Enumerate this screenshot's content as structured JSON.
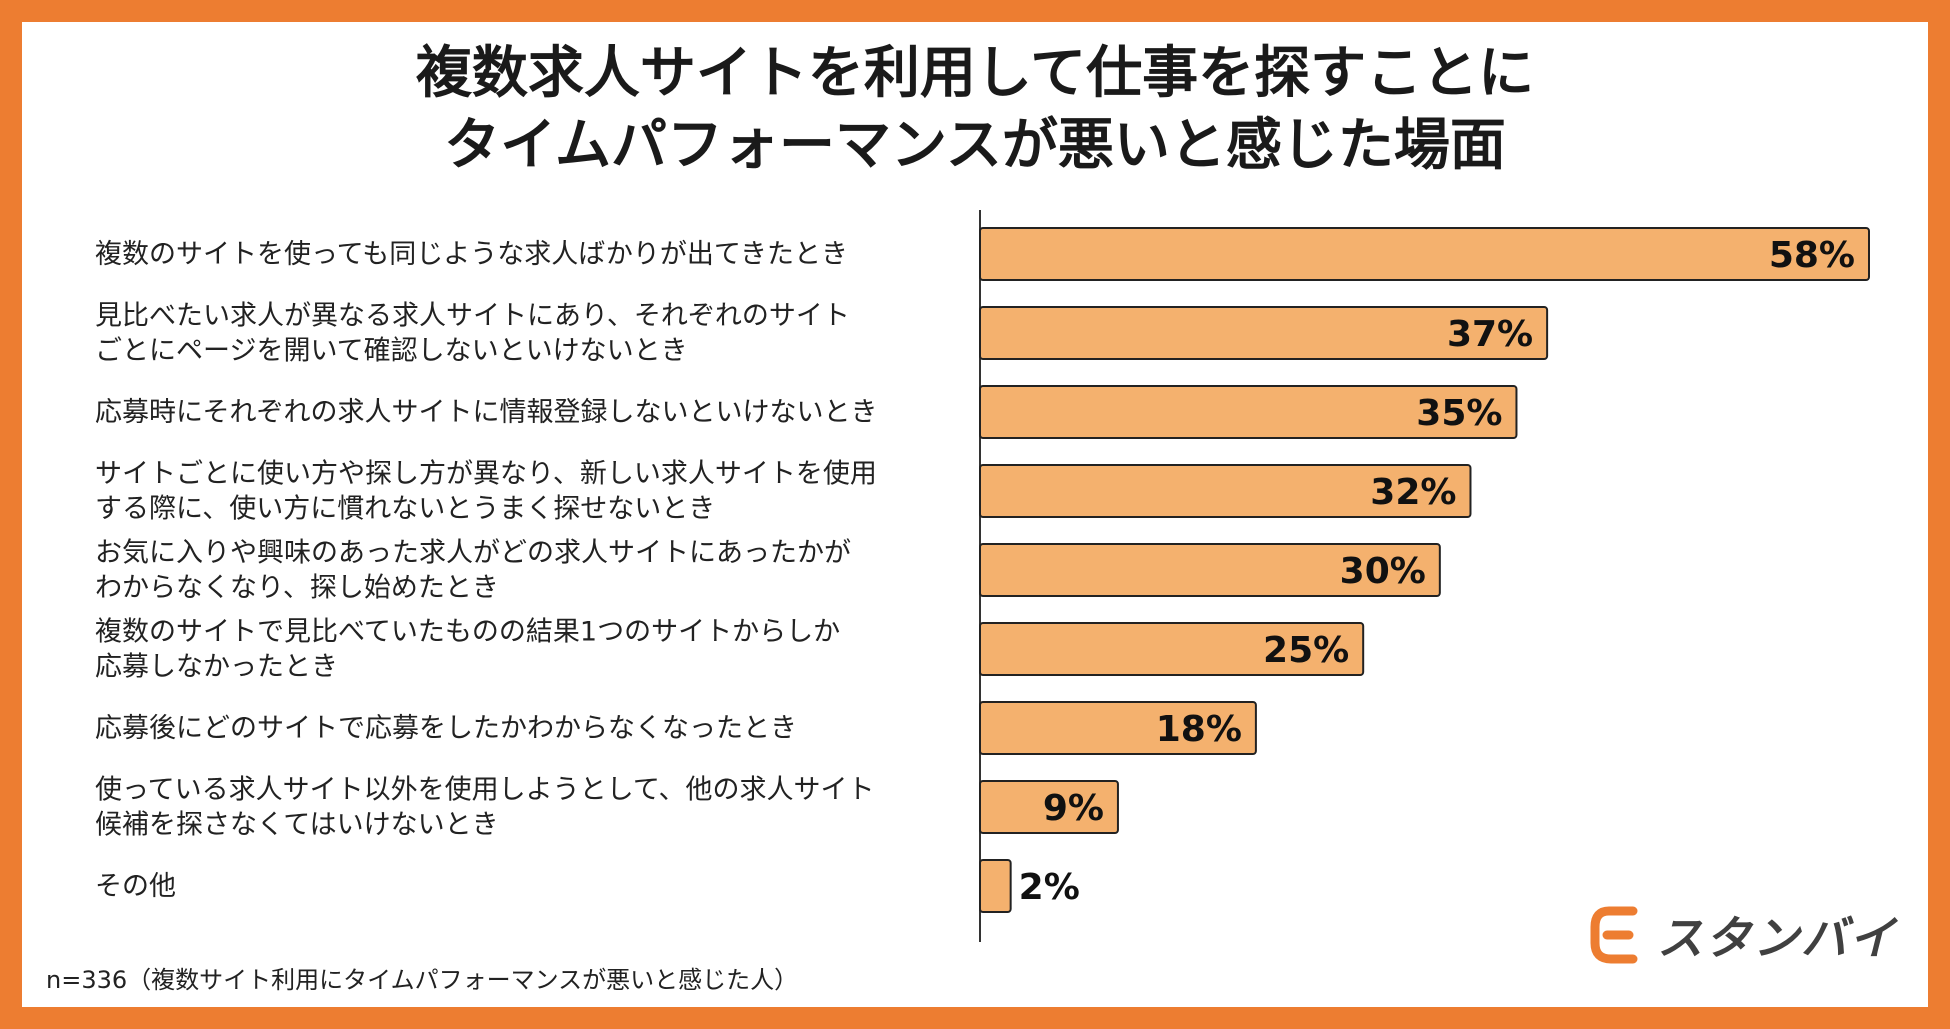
{
  "title": {
    "line1": "複数求人サイトを利用して仕事を探すことに",
    "line2": "タイムパフォーマンスが悪いと感じた場面"
  },
  "chart_data": {
    "type": "bar",
    "orientation": "horizontal",
    "categories": [
      [
        "複数のサイトを使っても同じような求人ばかりが出てきたとき"
      ],
      [
        "見比べたい求人が異なる求人サイトにあり、それぞれのサイト",
        "ごとにページを開いて確認しないといけないとき"
      ],
      [
        "応募時にそれぞれの求人サイトに情報登録しないといけないとき"
      ],
      [
        "サイトごとに使い方や探し方が異なり、新しい求人サイトを使用",
        "する際に、使い方に慣れないとうまく探せないとき"
      ],
      [
        "お気に入りや興味のあった求人がどの求人サイトにあったかが",
        "わからなくなり、探し始めたとき"
      ],
      [
        "複数のサイトで見比べていたものの結果1つのサイトからしか",
        "応募しなかったとき"
      ],
      [
        "応募後にどのサイトで応募をしたかわからなくなったとき"
      ],
      [
        "使っている求人サイト以外を使用しようとして、他の求人サイト",
        "候補を探さなくてはいけないとき"
      ],
      [
        "その他"
      ]
    ],
    "values": [
      58,
      37,
      35,
      32,
      30,
      25,
      18,
      9,
      2
    ],
    "value_labels": [
      "58%",
      "37%",
      "35%",
      "32%",
      "30%",
      "25%",
      "18%",
      "9%",
      "2%"
    ],
    "xlim": [
      0,
      60
    ],
    "bar_color": "#F4B16E",
    "bar_stroke": "#222222",
    "grid": false,
    "legend": "none"
  },
  "note": "n=336（複数サイト利用にタイムパフォーマンスが悪いと感じた人）",
  "logo": {
    "text": "スタンバイ",
    "icon": "standby-logo-icon",
    "color": "#ED7D31"
  },
  "colors": {
    "frame": "#ED7D31",
    "background": "#FFFFFF"
  }
}
